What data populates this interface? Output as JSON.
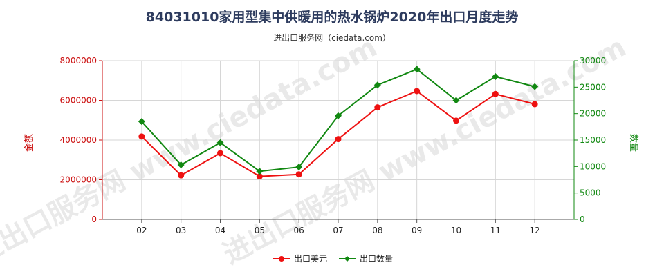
{
  "header": {
    "title": "84031010家用型集中供暖用的热水锅炉2020年出口月度走势",
    "subtitle": "进出口服务网（ciedata.com）"
  },
  "watermark": "进出口服务网 www.ciedata.com",
  "chart_data": {
    "type": "line",
    "categories": [
      "02",
      "03",
      "04",
      "05",
      "06",
      "07",
      "08",
      "09",
      "10",
      "11",
      "12"
    ],
    "series": [
      {
        "name": "出口美元",
        "axis": "left",
        "color": "#ee1111",
        "values": [
          4180000,
          2220000,
          3340000,
          2170000,
          2270000,
          4050000,
          5650000,
          6470000,
          4980000,
          6320000,
          5810000
        ]
      },
      {
        "name": "出口数量",
        "axis": "right",
        "color": "#118811",
        "values": [
          18500,
          10300,
          14500,
          9100,
          9900,
          19600,
          25400,
          28400,
          22500,
          27000,
          25100
        ]
      }
    ],
    "ylabel_left": "金额",
    "ylabel_right": "数量",
    "ylim_left": [
      0,
      8000000
    ],
    "ylim_right": [
      0,
      30000
    ],
    "yticks_left": [
      "0",
      "2000000",
      "4000000",
      "6000000",
      "8000000"
    ],
    "yticks_right": [
      "0",
      "5000",
      "10000",
      "15000",
      "20000",
      "25000",
      "30000"
    ],
    "grid": true,
    "legend": "bottom"
  }
}
